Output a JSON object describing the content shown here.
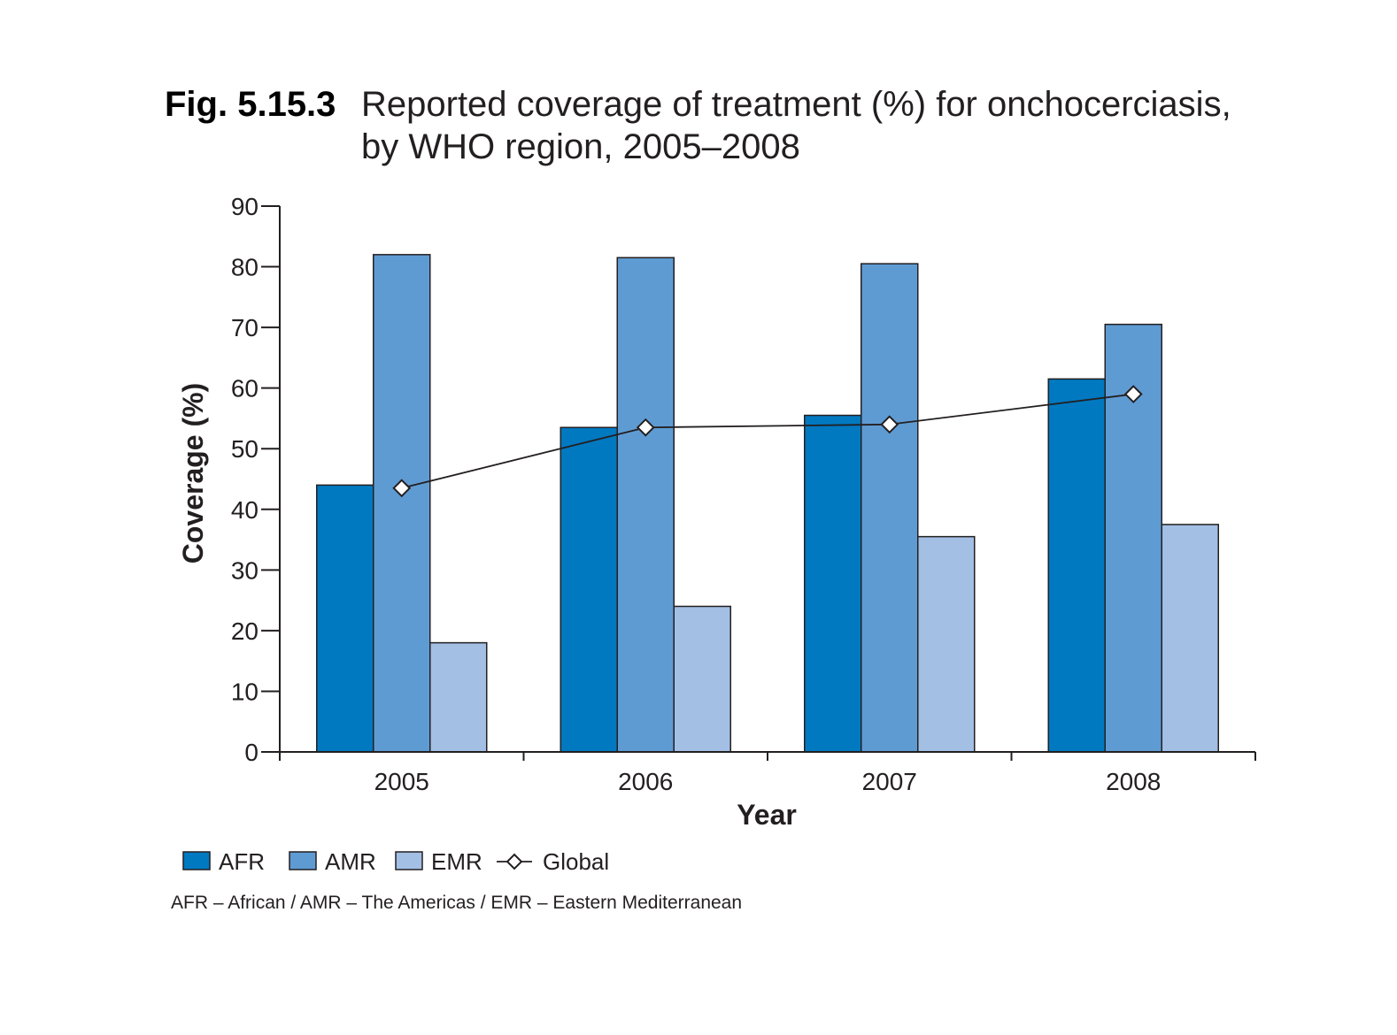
{
  "figure": {
    "label": "Fig. 5.15.3",
    "title_line1": "Reported coverage of treatment (%) for onchocerciasis,",
    "title_line2": "by WHO region, 2005–2008",
    "note": "AFR – African / AMR – The Americas / EMR – Eastern Mediterranean"
  },
  "colors": {
    "label": "#0b7dc3",
    "AFR": "#0079c1",
    "AMR": "#5f9bd3",
    "EMR": "#a3bfe4",
    "Global": "#231f20",
    "axis": "#231f20"
  },
  "chart_data": {
    "type": "bar",
    "title": "Reported coverage of treatment (%) for onchocerciasis, by WHO region, 2005–2008",
    "xlabel": "Year",
    "ylabel": "Coverage (%)",
    "categories": [
      "2005",
      "2006",
      "2007",
      "2008"
    ],
    "ylim": [
      0,
      90
    ],
    "yticks": [
      0,
      10,
      20,
      30,
      40,
      50,
      60,
      70,
      80,
      90
    ],
    "grid": false,
    "legend_position": "bottom-left",
    "series": [
      {
        "name": "AFR",
        "kind": "bar",
        "values": [
          44,
          53.5,
          55.5,
          61.5
        ]
      },
      {
        "name": "AMR",
        "kind": "bar",
        "values": [
          82,
          81.5,
          80.5,
          70.5
        ]
      },
      {
        "name": "EMR",
        "kind": "bar",
        "values": [
          18,
          24,
          35.5,
          37.5
        ]
      },
      {
        "name": "Global",
        "kind": "line",
        "marker": "diamond",
        "values": [
          43.5,
          53.5,
          54,
          59
        ]
      }
    ]
  }
}
